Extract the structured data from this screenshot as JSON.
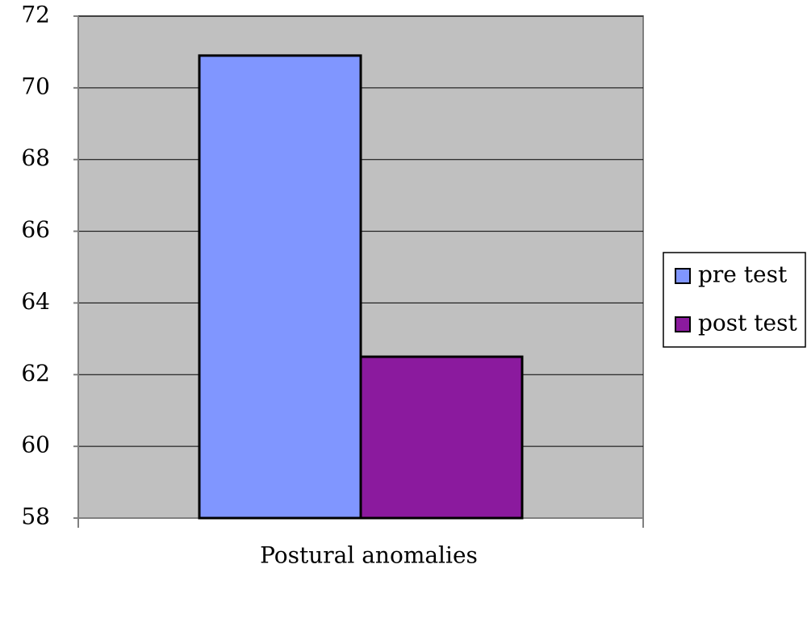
{
  "chart_data": {
    "type": "bar",
    "categories": [
      "Postural anomalies"
    ],
    "series": [
      {
        "name": "pre test",
        "color": "#8096ff",
        "values": [
          70.9
        ]
      },
      {
        "name": "post test",
        "color": "#8b1a9e",
        "values": [
          62.5
        ]
      }
    ],
    "ylim": [
      58,
      72
    ],
    "yticks": [
      58,
      60,
      62,
      64,
      66,
      68,
      70,
      72
    ],
    "grid": true,
    "legend": "right"
  }
}
